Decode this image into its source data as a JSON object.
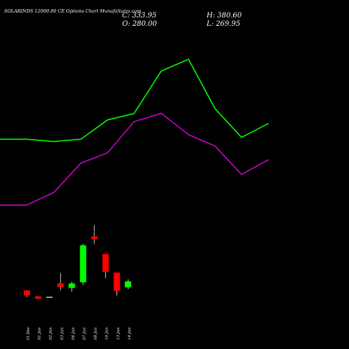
{
  "header": {
    "title": "SOLARINDS 12000.00 CE Options Chart MunafaSutra.com",
    "close_text": "C: 333.95",
    "open_text": "O: 280.00",
    "high_text": "H: 380.60",
    "low_text": "L: 269.95"
  },
  "colors": {
    "background": "#000000",
    "bullish": "#00ff00",
    "bearish": "#ff0000",
    "upper_band": "#00ff00",
    "lower_band": "#cc00cc",
    "doji": "#ffffff"
  },
  "chart_data": {
    "type": "candlestick",
    "categories": [
      "31 Dec",
      "01 Jan",
      "02 Jan",
      "03 Jan",
      "06 Jan",
      "07 Jan",
      "08 Jan",
      "10 Jan",
      "13 Jan",
      "14 Jan"
    ],
    "candles": [
      {
        "open": 145,
        "high": 145,
        "low": 115,
        "close": 122
      },
      {
        "open": 118,
        "high": 118,
        "low": 106,
        "close": 108
      },
      {
        "open": 114,
        "high": 114,
        "low": 114,
        "close": 114
      },
      {
        "open": 175,
        "high": 220,
        "low": 145,
        "close": 160
      },
      {
        "open": 155,
        "high": 182,
        "low": 138,
        "close": 175
      },
      {
        "open": 180,
        "high": 349,
        "low": 168,
        "close": 343
      },
      {
        "open": 382,
        "high": 432,
        "low": 349,
        "close": 370
      },
      {
        "open": 305,
        "high": 305,
        "low": 198,
        "close": 226
      },
      {
        "open": 223,
        "high": 223,
        "low": 121,
        "close": 142
      },
      {
        "open": 158,
        "high": 193,
        "low": 150,
        "close": 184
      }
    ],
    "bands": {
      "x_start": "",
      "upper": [
        810,
        810,
        800,
        810,
        895,
        923,
        1110,
        1162,
        945,
        818,
        880
      ],
      "lower": [
        520,
        520,
        575,
        705,
        750,
        887,
        924,
        830,
        780,
        655,
        720
      ]
    },
    "ylim": [
      40,
      1300
    ]
  }
}
